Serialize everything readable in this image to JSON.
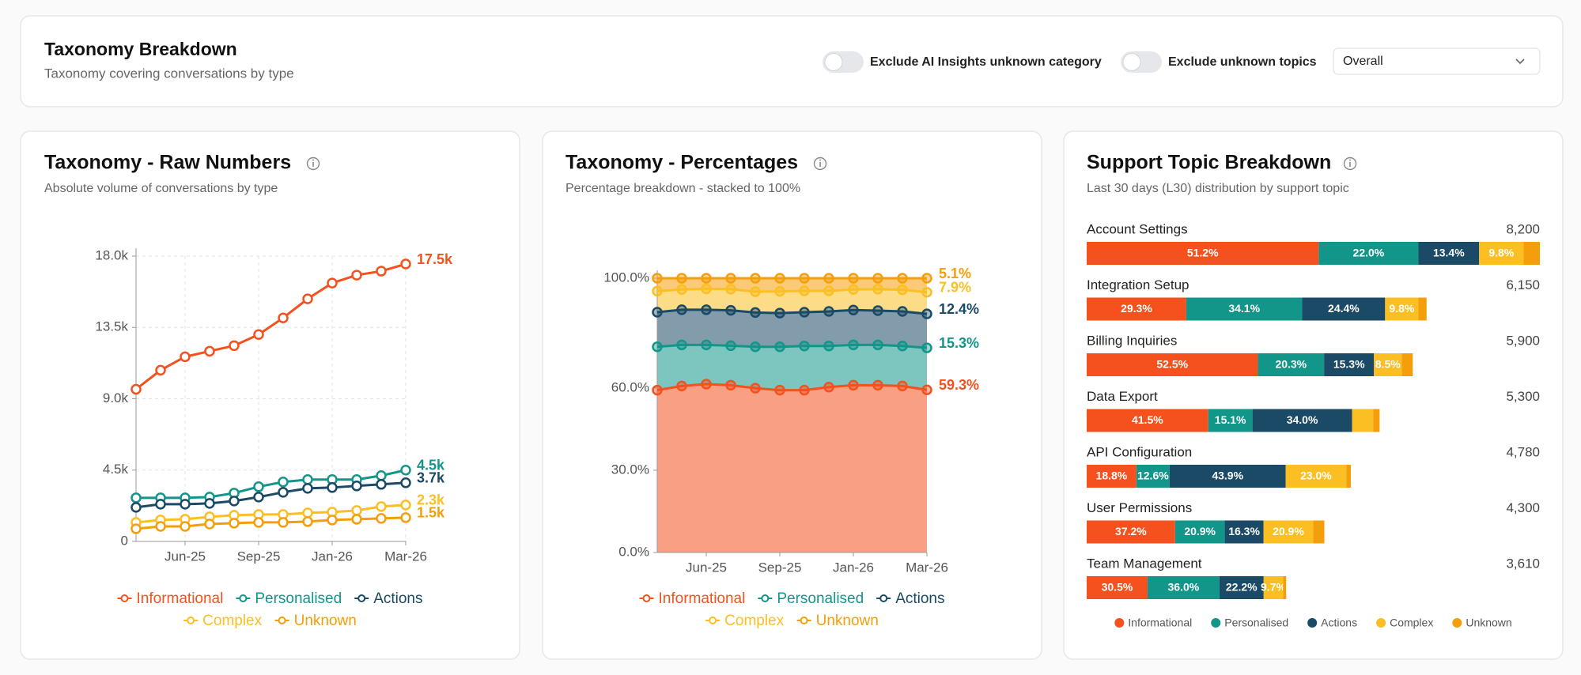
{
  "header": {
    "title": "Taxonomy Breakdown",
    "subtitle": "Taxonomy covering conversations by type",
    "toggles": [
      "Exclude AI Insights unknown category",
      "Exclude unknown topics"
    ],
    "dropdown": "Overall"
  },
  "chart_data": [
    {
      "type": "line",
      "title": "Taxonomy - Raw Numbers",
      "subtitle": "Absolute volume of conversations by type",
      "categories": [
        null,
        null,
        "Jun-25",
        null,
        null,
        "Sep-25",
        null,
        null,
        "Jan-26",
        null,
        null,
        "Mar-26"
      ],
      "series": [
        {
          "name": "Informational",
          "color": "#f4511e",
          "values": [
            9600,
            10800,
            11650,
            12000,
            12350,
            13050,
            14100,
            15300,
            16300,
            16800,
            17050,
            17500
          ],
          "value_labels": [
            null,
            null,
            null,
            null,
            null,
            null,
            null,
            null,
            null,
            null,
            null,
            "17.5k"
          ]
        },
        {
          "name": "Personalised",
          "color": "#12968a",
          "values": [
            2750,
            2750,
            2750,
            2800,
            3050,
            3450,
            3750,
            3900,
            3900,
            3900,
            4150,
            4500
          ],
          "value_labels": [
            null,
            null,
            null,
            null,
            null,
            null,
            null,
            null,
            null,
            null,
            null,
            "4.5k"
          ]
        },
        {
          "name": "Actions",
          "color": "#1b4a66",
          "values": [
            2150,
            2350,
            2350,
            2400,
            2550,
            2800,
            3100,
            3350,
            3400,
            3500,
            3600,
            3700
          ],
          "value_labels": [
            null,
            null,
            null,
            null,
            null,
            null,
            null,
            null,
            null,
            null,
            null,
            "3.7k"
          ]
        },
        {
          "name": "Complex",
          "color": "#fbbf24",
          "values": [
            1200,
            1350,
            1400,
            1550,
            1650,
            1700,
            1700,
            1800,
            1850,
            1950,
            2200,
            2300
          ],
          "value_labels": [
            null,
            null,
            null,
            null,
            null,
            null,
            null,
            null,
            null,
            null,
            null,
            "2.3k"
          ]
        },
        {
          "name": "Unknown",
          "color": "#f59e0b",
          "values": [
            800,
            950,
            950,
            1100,
            1150,
            1200,
            1200,
            1250,
            1350,
            1400,
            1450,
            1500
          ],
          "value_labels": [
            null,
            null,
            null,
            null,
            null,
            null,
            null,
            null,
            null,
            null,
            null,
            "1.5k"
          ]
        }
      ],
      "ylim": [
        0,
        18000
      ],
      "yticks": [
        0,
        {
          "value": 4500,
          "label": "4.5k"
        },
        {
          "value": 9000,
          "label": "9.0k"
        },
        {
          "value": 13500,
          "label": "13.5k"
        },
        {
          "value": 18000,
          "label": "18.0k"
        }
      ],
      "grid": true
    },
    {
      "type": "area",
      "stacked": true,
      "title": "Taxonomy - Percentages",
      "subtitle": "Percentage breakdown - stacked to 100%",
      "categories": [
        null,
        null,
        "Jun-25",
        null,
        null,
        "Sep-25",
        null,
        null,
        "Jan-26",
        null,
        null,
        "Mar-26"
      ],
      "series": [
        {
          "name": "Informational",
          "color": "#f4511e",
          "values": [
            59.2,
            60.7,
            61.4,
            61.0,
            59.9,
            59.2,
            59.2,
            60.3,
            61.0,
            61.0,
            60.7,
            59.3
          ],
          "value_labels": [
            null,
            null,
            null,
            null,
            null,
            null,
            null,
            null,
            null,
            null,
            null,
            "59.3%"
          ]
        },
        {
          "name": "Personalised",
          "color": "#12968a",
          "values": [
            15.8,
            15.0,
            14.3,
            14.4,
            15.1,
            15.8,
            16.1,
            15.0,
            14.7,
            14.7,
            14.6,
            15.3
          ],
          "value_labels": [
            null,
            null,
            null,
            null,
            null,
            null,
            null,
            null,
            null,
            null,
            null,
            "15.3%"
          ]
        },
        {
          "name": "Actions",
          "color": "#1b4a66",
          "values": [
            12.6,
            12.8,
            12.8,
            12.9,
            12.5,
            12.3,
            12.3,
            12.6,
            12.7,
            12.5,
            12.6,
            12.4
          ],
          "value_labels": [
            null,
            null,
            null,
            null,
            null,
            null,
            null,
            null,
            null,
            null,
            null,
            "12.4%"
          ]
        },
        {
          "name": "Complex",
          "color": "#fbbf24",
          "values": [
            7.7,
            7.4,
            7.6,
            7.7,
            7.6,
            7.9,
            7.8,
            7.5,
            7.5,
            7.8,
            7.9,
            7.9
          ],
          "value_labels": [
            null,
            null,
            null,
            null,
            null,
            null,
            null,
            null,
            null,
            null,
            null,
            "7.9%"
          ]
        },
        {
          "name": "Unknown",
          "color": "#f59e0b",
          "values": [
            4.7,
            4.1,
            3.9,
            4.0,
            4.9,
            4.8,
            4.6,
            4.6,
            4.1,
            4.0,
            4.2,
            5.1
          ],
          "value_labels": [
            null,
            null,
            null,
            null,
            null,
            null,
            null,
            null,
            null,
            null,
            null,
            "5.1%"
          ]
        }
      ],
      "ylim": [
        0,
        100
      ],
      "yticks": [
        {
          "value": 0,
          "label": "0.0%"
        },
        {
          "value": 30,
          "label": "30.0%"
        },
        {
          "value": 60,
          "label": "60.0%"
        },
        {
          "value": 100,
          "label": "100.0%"
        }
      ],
      "grid": false
    },
    {
      "type": "bar",
      "orientation": "horizontal",
      "stacked": true,
      "title": "Support Topic Breakdown",
      "subtitle": "Last 30 days (L30) distribution by support topic",
      "categories": [
        "Account Settings",
        "Integration Setup",
        "Billing Inquiries",
        "Data Export",
        "API Configuration",
        "User Permissions",
        "Team Management"
      ],
      "totals": {
        "values": [
          8200,
          6150,
          5900,
          5300,
          4780,
          4300,
          3610
        ],
        "value_labels": [
          "8,200",
          "6,150",
          "5,900",
          "5,300",
          "4,780",
          "4,300",
          "3,610"
        ]
      },
      "series": [
        {
          "name": "Informational",
          "color": "#f4511e",
          "values": [
            51.2,
            29.3,
            52.5,
            41.5,
            18.8,
            37.2,
            30.5
          ],
          "value_labels": [
            "51.2%",
            "29.3%",
            "52.5%",
            "41.5%",
            "18.8%",
            "37.2%",
            "30.5%"
          ]
        },
        {
          "name": "Personalised",
          "color": "#12968a",
          "values": [
            22.0,
            34.1,
            20.3,
            15.1,
            12.6,
            20.9,
            36.0
          ],
          "value_labels": [
            "22.0%",
            "34.1%",
            "20.3%",
            "15.1%",
            "12.6%",
            "20.9%",
            "36.0%"
          ]
        },
        {
          "name": "Actions",
          "color": "#1b4a66",
          "values": [
            13.4,
            24.4,
            15.3,
            34.0,
            43.9,
            16.3,
            22.2
          ],
          "value_labels": [
            "13.4%",
            "24.4%",
            "15.3%",
            "34.0%",
            "43.9%",
            "16.3%",
            "22.2%"
          ]
        },
        {
          "name": "Complex",
          "color": "#fbbf24",
          "values": [
            9.8,
            9.8,
            8.5,
            7.2,
            23.0,
            20.9,
            9.7
          ],
          "value_labels": [
            "9.8%",
            "9.8%",
            "8.5%",
            null,
            "23.0%",
            "20.9%",
            "9.7%"
          ]
        },
        {
          "name": "Unknown",
          "color": "#f59e0b",
          "values": [
            3.6,
            2.4,
            3.4,
            2.2,
            1.7,
            4.7,
            1.6
          ]
        }
      ]
    }
  ]
}
